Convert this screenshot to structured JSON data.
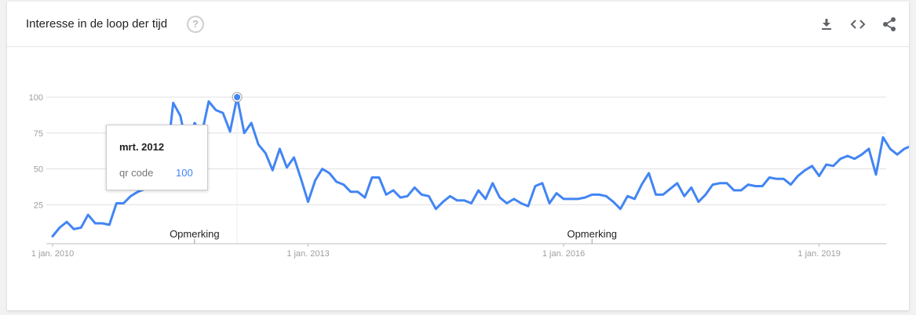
{
  "header": {
    "title": "Interesse in de loop der tijd",
    "help_glyph": "?",
    "actions": [
      {
        "icon": "download-icon"
      },
      {
        "icon": "embed-code-icon"
      },
      {
        "icon": "share-icon"
      }
    ]
  },
  "tooltip": {
    "date": "mrt. 2012",
    "series": "qr code",
    "value": "100"
  },
  "colors": {
    "line": "#4285f4",
    "grid": "#e0e0e0",
    "tick_text": "#9e9e9e",
    "note_text": "#212121"
  },
  "chart_data": {
    "type": "line",
    "title": "Interesse in de loop der tijd",
    "x_start": "2010-01",
    "x_step": "month",
    "series": [
      {
        "name": "qr code",
        "values": [
          3,
          9,
          13,
          8,
          9,
          18,
          12,
          12,
          11,
          26,
          26,
          31,
          34,
          36,
          41,
          51,
          53,
          96,
          87,
          63,
          82,
          74,
          97,
          91,
          89,
          76,
          100,
          75,
          82,
          67,
          61,
          49,
          64,
          51,
          58,
          43,
          27,
          42,
          50,
          47,
          41,
          39,
          34,
          34,
          30,
          44,
          44,
          32,
          35,
          30,
          31,
          37,
          32,
          31,
          22,
          27,
          31,
          28,
          28,
          26,
          35,
          29,
          40,
          30,
          26,
          29,
          26,
          24,
          38,
          40,
          26,
          33,
          29,
          29,
          29,
          30,
          32,
          32,
          31,
          27,
          22,
          31,
          29,
          39,
          47,
          32,
          32,
          36,
          40,
          31,
          37,
          27,
          32,
          39,
          40,
          40,
          35,
          35,
          39,
          38,
          38,
          44,
          43,
          43,
          39,
          45,
          49,
          52,
          45,
          53,
          52,
          57,
          59,
          57,
          60,
          64,
          46,
          72,
          64,
          60,
          64,
          66
        ]
      }
    ],
    "ylim": [
      0,
      100
    ],
    "yticks": [
      25,
      50,
      75,
      100
    ],
    "xticks": [
      "1 jan. 2010",
      "1 jan. 2013",
      "1 jan. 2016",
      "1 jan. 2019"
    ],
    "annotations": [
      "Opmerking",
      "Opmerking"
    ],
    "highlight": {
      "label": "mrt. 2012",
      "value": 100
    },
    "grid": true,
    "legend": "none"
  }
}
